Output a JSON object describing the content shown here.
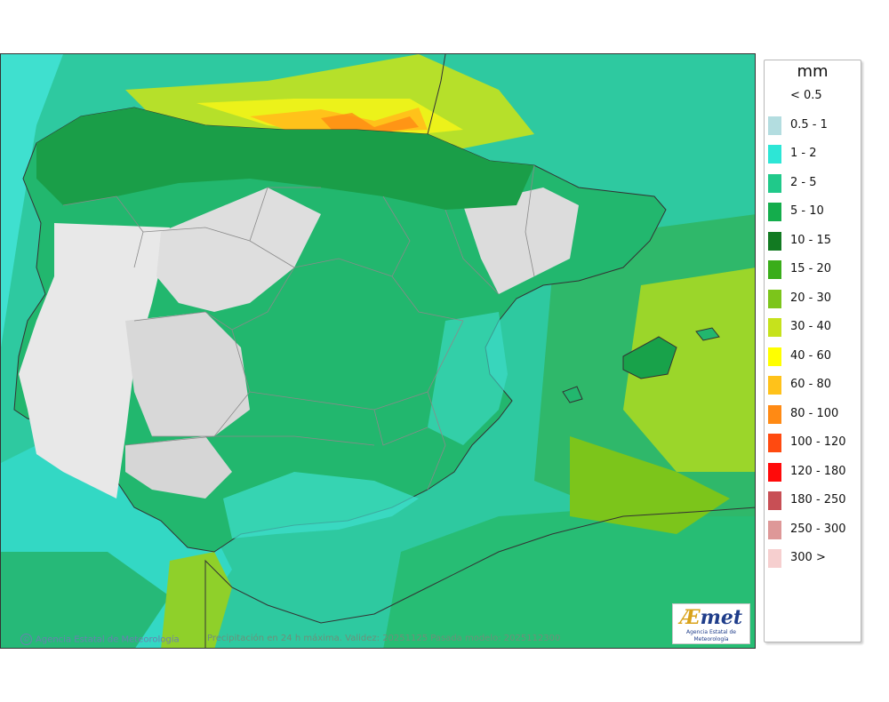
{
  "map": {
    "credit": "Agencia Estatal de Meteorología",
    "validity": "Precipitación en 24 h máxima. Validez: 20251125 Pasada modelo: 2025112300",
    "logo": {
      "mark_a": "Æ",
      "mark_b": "met",
      "subtitle": "Agencia Estatal de Meteorología"
    }
  },
  "legend": {
    "unit": "mm",
    "items": [
      {
        "label": "< 0.5",
        "color": ""
      },
      {
        "label": "0.5 - 1",
        "color": "#b3dde0"
      },
      {
        "label": "1 - 2",
        "color": "#2de6d6"
      },
      {
        "label": "2 - 5",
        "color": "#20c98a"
      },
      {
        "label": "5 - 10",
        "color": "#14ad4c"
      },
      {
        "label": "10 - 15",
        "color": "#127a22"
      },
      {
        "label": "15 - 20",
        "color": "#3aad1a"
      },
      {
        "label": "20 - 30",
        "color": "#7cc51b"
      },
      {
        "label": "30 - 40",
        "color": "#c6e21c"
      },
      {
        "label": "40 - 60",
        "color": "#ffff00"
      },
      {
        "label": "60 - 80",
        "color": "#ffc21a"
      },
      {
        "label": "80 - 100",
        "color": "#ff8a14"
      },
      {
        "label": "100 - 120",
        "color": "#ff4a10"
      },
      {
        "label": "120 - 180",
        "color": "#ff0a0a"
      },
      {
        "label": "180 - 250",
        "color": "#c84f55"
      },
      {
        "label": "250 - 300",
        "color": "#de9898"
      },
      {
        "label": "300 >",
        "color": "#f6cfcf"
      }
    ]
  }
}
